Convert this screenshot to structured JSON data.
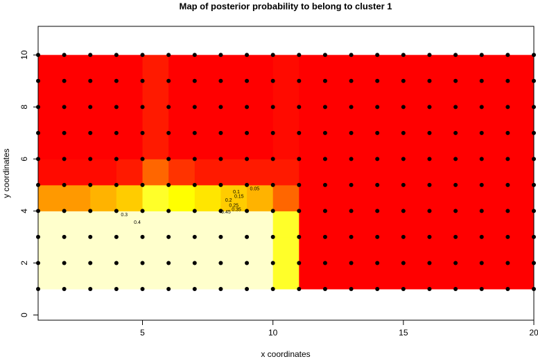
{
  "chart_data": {
    "type": "heatmap",
    "title": "Map of posterior probability to belong to cluster  1",
    "x_label": "x coordinates",
    "y_label": "y coordinates",
    "xlim": [
      1,
      20
    ],
    "ylim": [
      -0.2,
      11.1
    ],
    "xticks": [
      5,
      10,
      15,
      20
    ],
    "yticks": [
      0,
      2,
      4,
      6,
      8,
      10
    ],
    "colormap": [
      "#ff0000",
      "#ffff00",
      "#ffffcc"
    ],
    "x_edges": [
      1,
      2,
      3,
      4,
      5,
      6,
      7,
      8,
      9,
      10,
      11,
      12,
      13,
      14,
      15,
      16,
      17,
      18,
      19,
      20
    ],
    "y_edges": [
      1,
      2,
      3,
      4,
      5,
      6,
      7,
      8,
      9,
      10
    ],
    "z": [
      [
        1,
        1,
        1,
        1,
        1,
        1,
        1,
        1,
        1,
        0.6,
        0,
        0,
        0,
        0,
        0,
        0,
        0,
        0,
        0
      ],
      [
        1,
        1,
        1,
        1,
        1,
        1,
        1,
        1,
        1,
        0.6,
        0,
        0,
        0,
        0,
        0,
        0,
        0,
        0,
        0
      ],
      [
        1,
        1,
        1,
        1,
        1,
        1,
        1,
        1,
        1,
        0.6,
        0,
        0,
        0,
        0,
        0,
        0,
        0,
        0,
        0
      ],
      [
        0.3,
        0.3,
        0.35,
        0.4,
        0.6,
        0.5,
        0.45,
        0.4,
        0.35,
        0.2,
        0,
        0,
        0,
        0,
        0,
        0,
        0,
        0,
        0
      ],
      [
        0.02,
        0.02,
        0.02,
        0.05,
        0.2,
        0.1,
        0.05,
        0.05,
        0.05,
        0.05,
        0,
        0,
        0,
        0,
        0,
        0,
        0,
        0,
        0
      ],
      [
        0,
        0,
        0,
        0,
        0.05,
        0,
        0,
        0,
        0,
        0.02,
        0,
        0,
        0,
        0,
        0,
        0,
        0,
        0,
        0
      ],
      [
        0,
        0,
        0,
        0,
        0.05,
        0,
        0,
        0,
        0,
        0.02,
        0,
        0,
        0,
        0,
        0,
        0,
        0,
        0,
        0
      ],
      [
        0,
        0,
        0,
        0,
        0.05,
        0,
        0,
        0,
        0,
        0.02,
        0,
        0,
        0,
        0,
        0,
        0,
        0,
        0,
        0
      ],
      [
        0,
        0,
        0,
        0,
        0.05,
        0,
        0,
        0,
        0,
        0.02,
        0,
        0,
        0,
        0,
        0,
        0,
        0,
        0,
        0
      ]
    ],
    "contour_levels": [
      0.05,
      0.1,
      0.15,
      0.2,
      0.25,
      0.3,
      0.35,
      0.4,
      0.45
    ],
    "points": {
      "color": "#000000",
      "x": [
        1,
        2,
        3,
        4,
        5,
        6,
        7,
        8,
        9,
        10,
        11,
        12,
        13,
        14,
        15,
        16,
        17,
        18,
        19,
        20
      ],
      "y": [
        1,
        2,
        3,
        4,
        5,
        6,
        7,
        8,
        9,
        10
      ]
    }
  }
}
